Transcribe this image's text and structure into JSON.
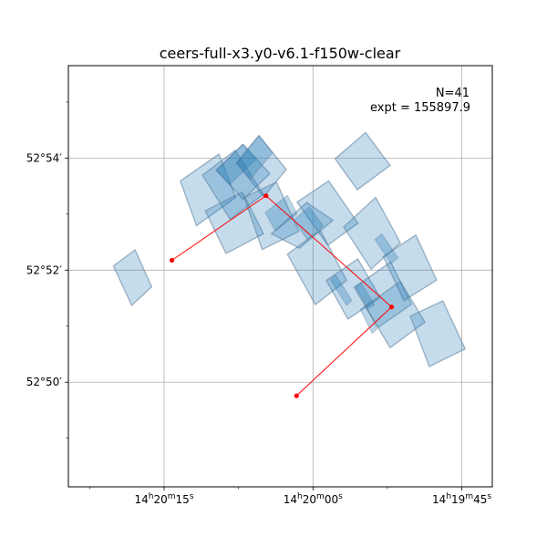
{
  "chart_data": {
    "type": "scatter",
    "title": "ceers-full-x3.y0-v6.1-f150w-clear",
    "annotation": {
      "lines": [
        "N=41",
        "expt = 155897.9"
      ],
      "n": 41,
      "expt": 155897.9
    },
    "x_axis": {
      "label": "",
      "unit": "RA (sexagesimal)",
      "inverted": true,
      "range_deg": [
        215.1027,
        214.9247
      ],
      "ticks": [
        {
          "value_deg": 215.0625,
          "label": "14h20m15s"
        },
        {
          "value_deg": 215.0,
          "label": "14h20m00s"
        },
        {
          "value_deg": 214.9375,
          "label": "14h19m45s"
        }
      ]
    },
    "y_axis": {
      "label": "",
      "unit": "Dec (sexagesimal)",
      "range_deg": [
        52.8022,
        52.9275
      ],
      "ticks": [
        {
          "value_deg": 52.9,
          "label": "52°54′"
        },
        {
          "value_deg": 52.86667,
          "label": "52°52′"
        },
        {
          "value_deg": 52.83333,
          "label": "52°50′"
        }
      ]
    },
    "grid": true,
    "footprint_color": "#1f77b4",
    "path_color": "#ff0000",
    "footprints": [
      [
        [
          215.0406,
          52.8964
        ],
        [
          215.0294,
          52.9041
        ],
        [
          215.0181,
          52.8954
        ],
        [
          215.0293,
          52.8877
        ]
      ],
      [
        [
          215.0321,
          52.8986
        ],
        [
          215.0227,
          52.9067
        ],
        [
          215.0112,
          52.8966
        ],
        [
          215.0207,
          52.8885
        ]
      ],
      [
        [
          215.0557,
          52.8932
        ],
        [
          215.0395,
          52.9012
        ],
        [
          215.0324,
          52.8883
        ],
        [
          215.0489,
          52.8799
        ]
      ],
      [
        [
          215.0464,
          52.8949
        ],
        [
          215.0327,
          52.9023
        ],
        [
          215.0208,
          52.8892
        ],
        [
          215.0348,
          52.8818
        ]
      ],
      [
        [
          215.0452,
          52.8843
        ],
        [
          215.0297,
          52.8899
        ],
        [
          215.0208,
          52.8775
        ],
        [
          215.0365,
          52.8716
        ]
      ],
      [
        [
          215.0289,
          52.8883
        ],
        [
          215.0153,
          52.8928
        ],
        [
          215.0059,
          52.8782
        ],
        [
          215.0213,
          52.8728
        ]
      ],
      [
        [
          215.0175,
          52.8775
        ],
        [
          215.0026,
          52.8868
        ],
        [
          214.9916,
          52.8815
        ],
        [
          215.0057,
          52.8732
        ]
      ],
      [
        [
          215.0067,
          52.8869
        ],
        [
          214.9934,
          52.8932
        ],
        [
          214.9811,
          52.8806
        ],
        [
          214.9938,
          52.8741
        ]
      ],
      [
        [
          214.9907,
          52.8998
        ],
        [
          214.9779,
          52.9076
        ],
        [
          214.9676,
          52.8978
        ],
        [
          214.9814,
          52.8906
        ]
      ],
      [
        [
          215.0107,
          52.8714
        ],
        [
          214.9969,
          52.8786
        ],
        [
          214.9859,
          52.8636
        ],
        [
          214.999,
          52.8564
        ]
      ],
      [
        [
          214.9871,
          52.8795
        ],
        [
          214.9737,
          52.8883
        ],
        [
          214.9633,
          52.8748
        ],
        [
          214.9756,
          52.867
        ]
      ],
      [
        [
          214.9944,
          52.8636
        ],
        [
          214.9812,
          52.87
        ],
        [
          214.9718,
          52.8585
        ],
        [
          214.9853,
          52.8521
        ]
      ],
      [
        [
          214.9826,
          52.8615
        ],
        [
          214.9674,
          52.8691
        ],
        [
          214.9586,
          52.8565
        ],
        [
          214.9727,
          52.8496
        ]
      ],
      [
        [
          214.9705,
          52.8707
        ],
        [
          214.9568,
          52.8771
        ],
        [
          214.9481,
          52.8637
        ],
        [
          214.9618,
          52.8576
        ]
      ],
      [
        [
          214.9781,
          52.856
        ],
        [
          214.9633,
          52.8633
        ],
        [
          214.953,
          52.8512
        ],
        [
          214.9676,
          52.8436
        ]
      ],
      [
        [
          214.9591,
          52.853
        ],
        [
          214.9455,
          52.8575
        ],
        [
          214.9361,
          52.8432
        ],
        [
          214.9512,
          52.838
        ]
      ],
      [
        [
          215.0838,
          52.8679
        ],
        [
          215.0747,
          52.8727
        ],
        [
          215.0677,
          52.8617
        ],
        [
          215.0761,
          52.8562
        ]
      ]
    ],
    "overlaps": [
      [
        [
          215.0406,
          52.8964
        ],
        [
          215.0294,
          52.9041
        ],
        [
          215.0237,
          52.8998
        ],
        [
          215.0349,
          52.8921
        ]
      ],
      [
        [
          215.0321,
          52.8986
        ],
        [
          215.0227,
          52.9067
        ],
        [
          215.0169,
          52.9016
        ],
        [
          215.0264,
          52.8936
        ]
      ],
      [
        [
          215.0201,
          52.8838
        ],
        [
          215.0107,
          52.8889
        ],
        [
          215.0067,
          52.8834
        ],
        [
          215.0158,
          52.8783
        ]
      ],
      [
        [
          215.0081,
          52.8816
        ],
        [
          215.0015,
          52.8855
        ],
        [
          214.9957,
          52.8798
        ],
        [
          215.0024,
          52.8757
        ]
      ],
      [
        [
          214.974,
          52.8758
        ],
        [
          214.9711,
          52.8775
        ],
        [
          214.9643,
          52.8703
        ],
        [
          214.9672,
          52.8686
        ]
      ],
      [
        [
          214.9824,
          52.8619
        ],
        [
          214.9799,
          52.863
        ],
        [
          214.9741,
          52.8564
        ],
        [
          214.9768,
          52.8553
        ]
      ],
      [
        [
          214.9927,
          52.8638
        ],
        [
          214.9905,
          52.8653
        ],
        [
          214.9837,
          52.8577
        ],
        [
          214.9859,
          52.8562
        ]
      ],
      [
        [
          214.9801,
          52.855
        ],
        [
          214.9778,
          52.8562
        ],
        [
          214.9731,
          52.8491
        ],
        [
          214.9752,
          52.8479
        ]
      ]
    ],
    "path": [
      [
        215.0592,
        52.8696
      ],
      [
        215.0197,
        52.8888
      ],
      [
        214.967,
        52.8557
      ],
      [
        215.0069,
        52.8293
      ]
    ]
  }
}
